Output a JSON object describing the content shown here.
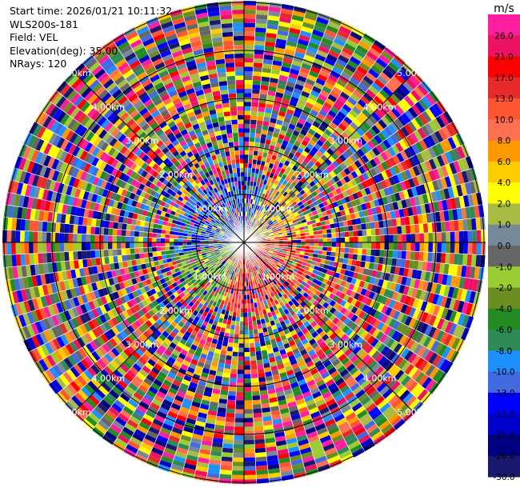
{
  "header": {
    "start_time": "Start time: 2026/01/21 10:11:32",
    "station": "WLS200s-181",
    "field": "Field: VEL",
    "elevation": "Elevation(deg): 35.00",
    "nrays": "NRays: 120"
  },
  "chart_data": {
    "type": "heatmap",
    "projection": "polar-ppi",
    "unit_label": "m/s",
    "range_ring_labels": [
      "1.00km",
      "2.00km",
      "3.00km",
      "4.00km",
      "5.00km"
    ],
    "colorbar": {
      "ticks": [
        "26.0",
        "21.0",
        "17.0",
        "13.0",
        "10.0",
        "8.0",
        "6.0",
        "4.0",
        "2.0",
        "1.0",
        "0.0",
        "-1.0",
        "-2.0",
        "-4.0",
        "-6.0",
        "-8.0",
        "-10.0",
        "-13.0",
        "-17.0",
        "-21.0",
        "-26.0",
        "-30.0"
      ],
      "colors": [
        "#ff1ea0",
        "#ee1166",
        "#ff0000",
        "#e82a2a",
        "#ff5530",
        "#ff7050",
        "#ff9900",
        "#ffcc00",
        "#ffff00",
        "#aabb44",
        "#778899",
        "#666666",
        "#9acd32",
        "#6b8e23",
        "#228b22",
        "#2e8b57",
        "#1e90ff",
        "#4169e1",
        "#0000ff",
        "#0000cd",
        "#000080",
        "#191970"
      ]
    }
  }
}
